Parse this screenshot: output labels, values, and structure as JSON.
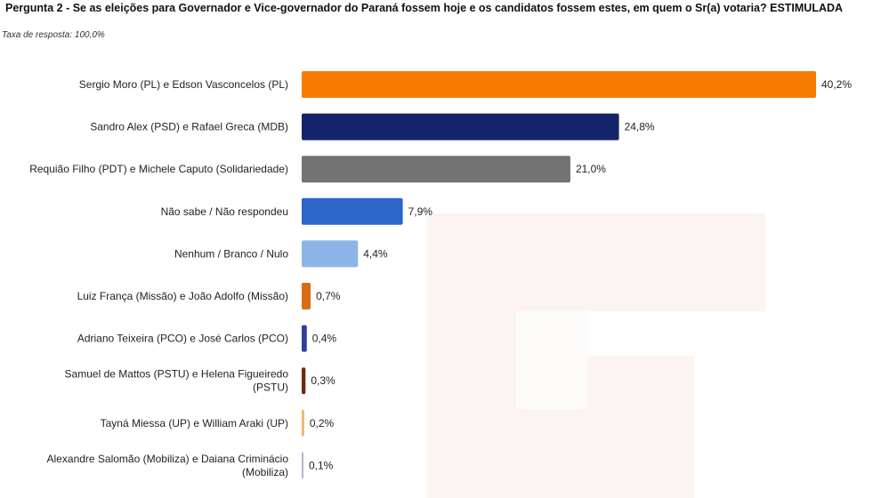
{
  "header": {
    "title": "Pergunta 2 - Se as eleições para Governador e Vice-governador do Paraná fossem hoje e os candidatos fossem estes, em quem o Sr(a) votaria? ESTIMULADA",
    "subtitle": "Taxa de resposta: 100,0%"
  },
  "chart_data": {
    "type": "bar",
    "orientation": "horizontal",
    "title": "Pergunta 2 - Se as eleições para Governador e Vice-governador do Paraná fossem hoje e os candidatos fossem estes, em quem o Sr(a) votaria? ESTIMULADA",
    "subtitle": "Taxa de resposta: 100,0%",
    "xlabel": "",
    "ylabel": "",
    "unit": "%",
    "grid": false,
    "legend": "none",
    "categories": [
      [
        "Sergio Moro (PL) e Edson Vasconcelos (PL)"
      ],
      [
        "Sandro Alex (PSD) e Rafael Greca (MDB)"
      ],
      [
        "Requião Filho (PDT) e Michele Caputo (Solidariedade)"
      ],
      [
        "Não sabe / Não respondeu"
      ],
      [
        "Nenhum / Branco / Nulo"
      ],
      [
        "Luiz França (Missão) e João Adolfo (Missão)"
      ],
      [
        "Adriano Teixeira (PCO) e José Carlos (PCO)"
      ],
      [
        "Samuel de Mattos (PSTU) e Helena Figueiredo",
        "(PSTU)"
      ],
      [
        "Tayná Miessa (UP) e William Araki (UP)"
      ],
      [
        "Alexandre Salomão (Mobiliza) e Daiana Criminácio",
        "(Mobiliza)"
      ]
    ],
    "values": [
      40.2,
      24.8,
      21.0,
      7.9,
      4.4,
      0.7,
      0.4,
      0.3,
      0.2,
      0.1
    ],
    "value_labels": [
      "40,2%",
      "24,8%",
      "21,0%",
      "7,9%",
      "4,4%",
      "0,7%",
      "0,4%",
      "0,3%",
      "0,2%",
      "0,1%"
    ],
    "colors": [
      "#f57c00",
      "#13246b",
      "#737373",
      "#2a66c9",
      "#8cb4e8",
      "#d86c14",
      "#2f3f9c",
      "#6e2a10",
      "#f2b66a",
      "#b0b6c8"
    ],
    "xlim": [
      0,
      40.2
    ]
  }
}
